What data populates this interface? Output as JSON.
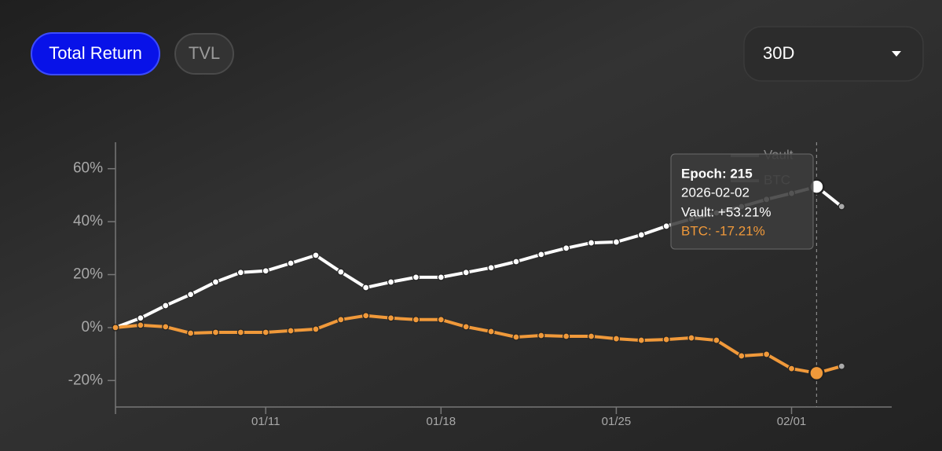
{
  "controls": {
    "tabs": [
      "Total Return",
      "TVL"
    ],
    "range": "30D"
  },
  "chart_data": {
    "type": "line",
    "x": [
      "2026-01-05",
      "2026-01-06",
      "2026-01-07",
      "2026-01-08",
      "2026-01-09",
      "2026-01-10",
      "2026-01-11",
      "2026-01-12",
      "2026-01-13",
      "2026-01-14",
      "2026-01-15",
      "2026-01-16",
      "2026-01-17",
      "2026-01-18",
      "2026-01-19",
      "2026-01-20",
      "2026-01-21",
      "2026-01-22",
      "2026-01-23",
      "2026-01-24",
      "2026-01-25",
      "2026-01-26",
      "2026-01-27",
      "2026-01-28",
      "2026-01-29",
      "2026-01-30",
      "2026-01-31",
      "2026-02-01",
      "2026-02-02",
      "2026-02-03"
    ],
    "xlim": [
      "2026-01-05",
      "2026-02-05"
    ],
    "xticks": [
      {
        "value": "2026-01-11",
        "label": "01/11"
      },
      {
        "value": "2026-01-18",
        "label": "01/18"
      },
      {
        "value": "2026-01-25",
        "label": "01/25"
      },
      {
        "value": "2026-02-01",
        "label": "02/01"
      }
    ],
    "ylim": [
      -30,
      70
    ],
    "yticks": [
      {
        "value": -20,
        "label": "-20%"
      },
      {
        "value": 0,
        "label": "0%"
      },
      {
        "value": 20,
        "label": "20%"
      },
      {
        "value": 40,
        "label": "40%"
      },
      {
        "value": 60,
        "label": "60%"
      }
    ],
    "series": [
      {
        "name": "Vault",
        "color": "#ffffff",
        "values": [
          0,
          3.6,
          8.3,
          12.5,
          17.2,
          20.8,
          21.4,
          24.3,
          27.3,
          21,
          15.1,
          17.2,
          19,
          19,
          20.8,
          22.6,
          24.9,
          27.6,
          30,
          32,
          32.3,
          35,
          38.3,
          41,
          43.3,
          45.7,
          48.4,
          50.7,
          53.21,
          45.7
        ]
      },
      {
        "name": "BTC",
        "color": "#f0993a",
        "values": [
          0,
          0.9,
          0.3,
          -2.1,
          -1.8,
          -1.8,
          -1.8,
          -1.2,
          -0.6,
          3,
          4.5,
          3.6,
          3,
          3,
          0.3,
          -1.5,
          -3.6,
          -3,
          -3.3,
          -3.3,
          -4.2,
          -4.8,
          -4.5,
          -3.9,
          -4.8,
          -10.7,
          -10.1,
          -15.5,
          -17.21,
          -14.6
        ]
      }
    ],
    "tooltip": {
      "title": "Epoch: 215",
      "date": "2026-02-02",
      "lines": [
        "Vault: +53.21%",
        "BTC: -17.21%"
      ]
    }
  }
}
